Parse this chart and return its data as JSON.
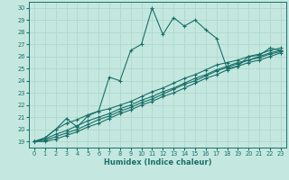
{
  "title": "",
  "xlabel": "Humidex (Indice chaleur)",
  "xlim": [
    -0.5,
    23.5
  ],
  "ylim": [
    18.5,
    30.5
  ],
  "xticks": [
    0,
    1,
    2,
    3,
    4,
    5,
    6,
    7,
    8,
    9,
    10,
    11,
    12,
    13,
    14,
    15,
    16,
    17,
    18,
    19,
    20,
    21,
    22,
    23
  ],
  "yticks": [
    19,
    20,
    21,
    22,
    23,
    24,
    25,
    26,
    27,
    28,
    29,
    30
  ],
  "bg_color": "#c4e8e0",
  "line_color": "#1a7068",
  "grid_color": "#b0d8cc",
  "line1_y": [
    19.0,
    19.3,
    20.0,
    20.9,
    20.2,
    21.1,
    21.5,
    24.3,
    24.0,
    26.5,
    27.0,
    30.0,
    27.8,
    29.2,
    28.5,
    29.0,
    28.2,
    27.5,
    25.0,
    25.2,
    26.0,
    26.1,
    26.7,
    26.5
  ],
  "line2_y": [
    19.0,
    19.3,
    20.0,
    20.5,
    20.8,
    21.2,
    21.5,
    21.7,
    22.0,
    22.3,
    22.7,
    23.1,
    23.4,
    23.8,
    24.2,
    24.5,
    24.9,
    25.3,
    25.5,
    25.7,
    26.0,
    26.2,
    26.5,
    26.7
  ],
  "line3_y": [
    19.0,
    19.2,
    19.6,
    19.9,
    20.3,
    20.7,
    21.0,
    21.3,
    21.7,
    22.0,
    22.4,
    22.7,
    23.1,
    23.4,
    23.8,
    24.2,
    24.5,
    24.9,
    25.2,
    25.5,
    25.7,
    26.0,
    26.3,
    26.5
  ],
  "line4_y": [
    19.0,
    19.1,
    19.4,
    19.7,
    20.0,
    20.4,
    20.8,
    21.1,
    21.5,
    21.8,
    22.2,
    22.5,
    22.9,
    23.3,
    23.7,
    24.0,
    24.4,
    24.8,
    25.1,
    25.4,
    25.7,
    25.9,
    26.2,
    26.4
  ],
  "line5_y": [
    19.0,
    19.0,
    19.2,
    19.5,
    19.8,
    20.2,
    20.5,
    20.9,
    21.3,
    21.6,
    22.0,
    22.3,
    22.7,
    23.0,
    23.4,
    23.8,
    24.2,
    24.5,
    24.9,
    25.2,
    25.5,
    25.7,
    26.0,
    26.3
  ]
}
